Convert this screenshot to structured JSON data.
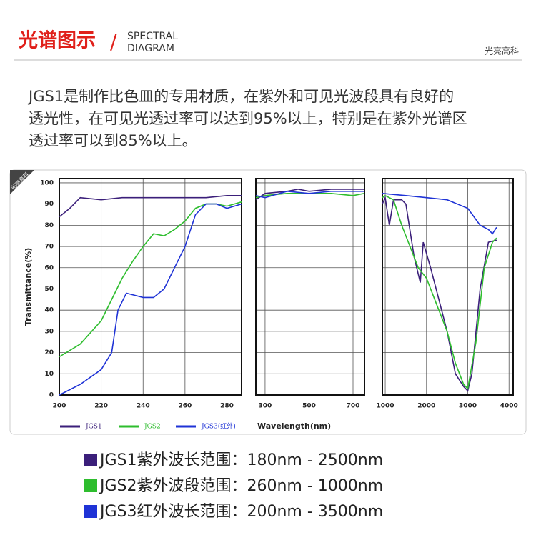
{
  "header": {
    "title": "光谱图示",
    "slash": "/",
    "subtitle_lines": [
      "SPECTRAL",
      "DIAGRAM"
    ],
    "brand": "光亮高科"
  },
  "intro_lines": [
    "JGS1是制作比色皿的专用材质，在紫外和可见光波段具有良好的",
    "透光性，在可见光透过率可以达到95%以上，特别是在紫外光谱区",
    "透过率可以到85%以上。"
  ],
  "badge": "光亮高科",
  "chart_data": [
    {
      "type": "line",
      "ylabel": "Transmittance(%)",
      "xlabel": "Wavelength(nm)",
      "grid": true,
      "xlim": [
        200,
        287
      ],
      "xticks": [
        200,
        220,
        240,
        260,
        280
      ],
      "ylim": [
        0,
        102
      ],
      "yticks": [
        0,
        10,
        20,
        30,
        40,
        50,
        60,
        70,
        80,
        90,
        100
      ],
      "series": [
        {
          "name": "JGS1",
          "color": "#3b1f7a",
          "x": [
            200,
            205,
            210,
            220,
            230,
            240,
            250,
            260,
            270,
            280,
            287
          ],
          "values": [
            84,
            88,
            93,
            92,
            93,
            93,
            93,
            93,
            93,
            94,
            94
          ]
        },
        {
          "name": "JGS2",
          "color": "#2ebd2e",
          "x": [
            200,
            210,
            220,
            230,
            235,
            240,
            245,
            250,
            255,
            260,
            265,
            270,
            275,
            280,
            287
          ],
          "values": [
            18,
            24,
            35,
            55,
            63,
            70,
            76,
            75,
            78,
            82,
            88,
            90,
            90,
            89,
            91
          ]
        },
        {
          "name": "JGS3(红外)",
          "color": "#1f33d6",
          "x": [
            200,
            210,
            220,
            225,
            228,
            232,
            240,
            245,
            250,
            255,
            260,
            265,
            270,
            275,
            280,
            287
          ],
          "values": [
            0,
            5,
            12,
            20,
            40,
            48,
            46,
            46,
            50,
            60,
            70,
            85,
            90,
            90,
            88,
            90
          ]
        }
      ]
    },
    {
      "type": "line",
      "grid": true,
      "xlim": [
        258,
        752
      ],
      "xticks": [
        300,
        500,
        700
      ],
      "ylim": [
        0,
        102
      ],
      "yticks": [
        0,
        10,
        20,
        30,
        40,
        50,
        60,
        70,
        80,
        90,
        100
      ],
      "series": [
        {
          "color": "#3b1f7a",
          "x": [
            258,
            300,
            400,
            450,
            500,
            600,
            700,
            752
          ],
          "values": [
            92,
            95,
            96,
            97,
            96,
            97,
            97,
            97
          ]
        },
        {
          "color": "#2ebd2e",
          "x": [
            258,
            300,
            400,
            500,
            600,
            700,
            752
          ],
          "values": [
            93,
            94,
            95,
            95,
            95,
            94,
            95
          ]
        },
        {
          "color": "#1f33d6",
          "x": [
            258,
            300,
            400,
            500,
            600,
            700,
            752
          ],
          "values": [
            94,
            93,
            96,
            95,
            96,
            96,
            96
          ]
        }
      ]
    },
    {
      "type": "line",
      "grid": true,
      "xlim": [
        930,
        4100
      ],
      "xticks": [
        1000,
        2000,
        3000,
        4000
      ],
      "ylim": [
        0,
        102
      ],
      "yticks": [
        0,
        10,
        20,
        30,
        40,
        50,
        60,
        70,
        80,
        90,
        100
      ],
      "series": [
        {
          "color": "#3b1f7a",
          "x": [
            930,
            1000,
            1100,
            1200,
            1400,
            1500,
            1700,
            1850,
            1920,
            2100,
            2300,
            2500,
            2700,
            2900,
            3000,
            3100,
            3300,
            3500,
            3700
          ],
          "values": [
            90,
            93,
            80,
            92,
            92,
            90,
            65,
            53,
            72,
            60,
            45,
            30,
            10,
            4,
            2,
            10,
            50,
            72,
            73
          ]
        },
        {
          "color": "#2ebd2e",
          "x": [
            930,
            1000,
            1200,
            1400,
            1600,
            1800,
            2000,
            2200,
            2500,
            2700,
            2900,
            3000,
            3200,
            3400,
            3600,
            3700
          ],
          "values": [
            93,
            94,
            92,
            80,
            70,
            60,
            55,
            45,
            30,
            15,
            5,
            3,
            25,
            60,
            72,
            74
          ]
        },
        {
          "color": "#1f33d6",
          "x": [
            930,
            1500,
            2000,
            2500,
            3000,
            3300,
            3500,
            3600,
            3700
          ],
          "values": [
            95,
            94,
            93,
            92,
            88,
            80,
            78,
            76,
            79
          ]
        }
      ]
    }
  ],
  "ranges": [
    {
      "color": "#3b1f7a",
      "text": "JGS1紫外波长范围：180nm - 2500nm"
    },
    {
      "color": "#2ebd2e",
      "text": "JGS2紫外波段范围：260nm - 1000nm"
    },
    {
      "color": "#1f33d6",
      "text": "JGS3红外波长范围：200nm - 3500nm"
    }
  ]
}
